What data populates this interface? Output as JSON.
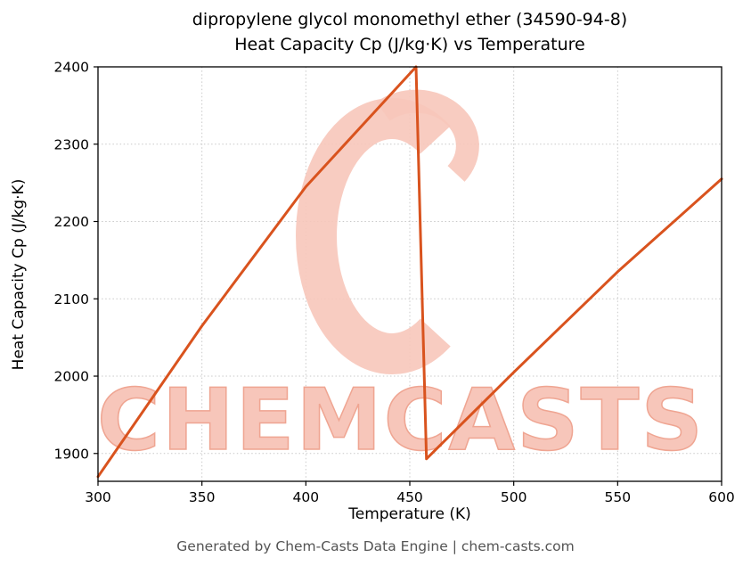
{
  "header": {
    "title_line1": "dipropylene glycol monomethyl ether (34590-94-8)",
    "title_line2": "Heat Capacity Cp (J/kg·K) vs Temperature"
  },
  "footer": {
    "text": "Generated by Chem-Casts Data Engine | chem-casts.com"
  },
  "watermark": {
    "text": "CHEMCASTS",
    "fill": "#f7c6ba",
    "outline": "#efa592"
  },
  "chart_data": {
    "type": "line",
    "title": "dipropylene glycol monomethyl ether (34590-94-8) Heat Capacity Cp (J/kg·K) vs Temperature",
    "xlabel": "Temperature (K)",
    "ylabel": "Heat Capacity Cp (J/kg·K)",
    "xlim": [
      300,
      600
    ],
    "ylim": [
      1864,
      2400
    ],
    "xticks": [
      300,
      350,
      400,
      450,
      500,
      550,
      600
    ],
    "yticks": [
      1900,
      2000,
      2100,
      2200,
      2300,
      2400
    ],
    "grid": true,
    "legend": false,
    "line_color": "#d9531e",
    "series": [
      {
        "name": "Heat Capacity Cp",
        "x": [
          300,
          350,
          400,
          453,
          458,
          500,
          550,
          600
        ],
        "y": [
          1870,
          2065,
          2245,
          2400,
          1893,
          2005,
          2135,
          2255
        ]
      }
    ]
  }
}
